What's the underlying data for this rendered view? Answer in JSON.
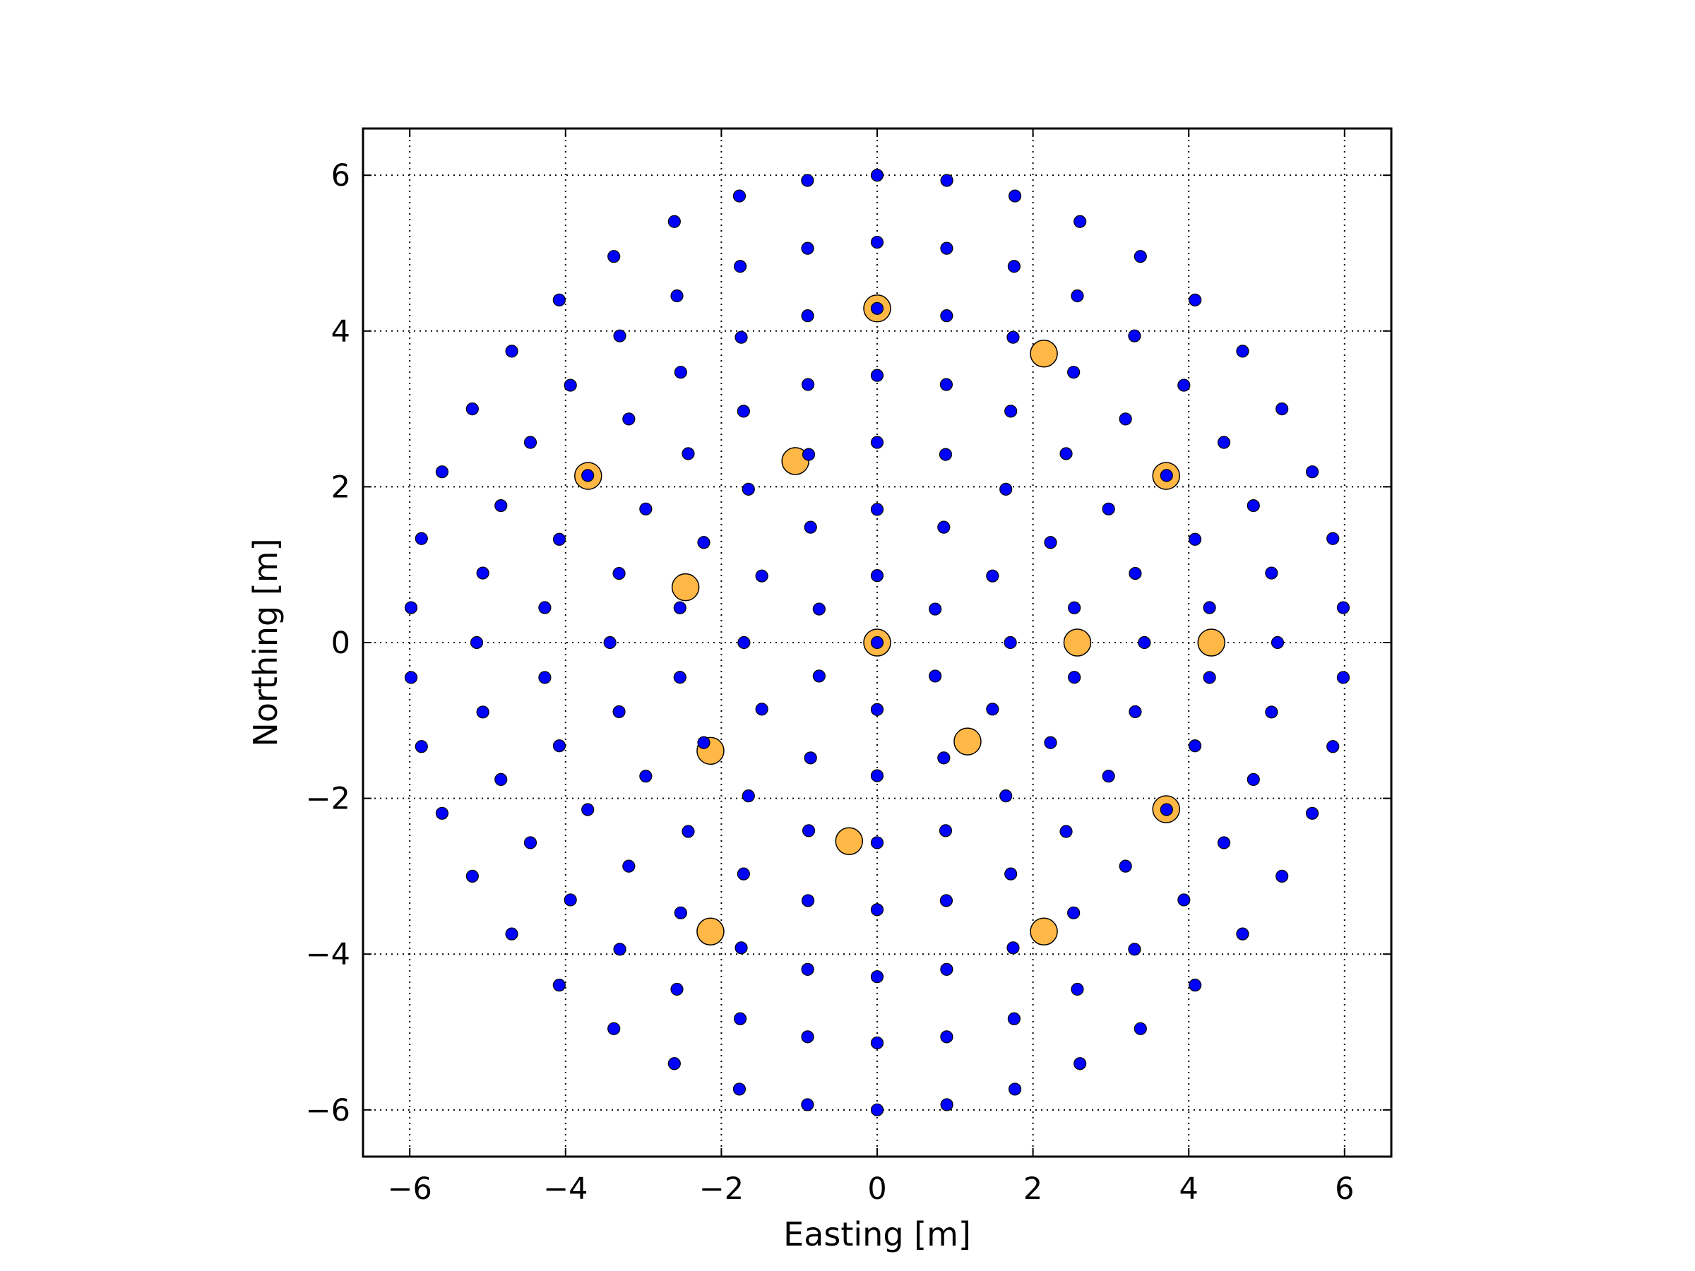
{
  "chart_data": {
    "type": "scatter",
    "title": "",
    "xlabel": "Easting [m]",
    "ylabel": "Northing [m]",
    "xlim": [
      -6.6,
      6.6
    ],
    "ylim": [
      -6.6,
      6.6
    ],
    "xticks": [
      -6,
      -4,
      -2,
      0,
      2,
      4,
      6
    ],
    "yticks": [
      -6,
      -4,
      -2,
      0,
      2,
      4,
      6
    ],
    "xtick_labels": [
      "−6",
      "−4",
      "−2",
      "0",
      "2",
      "4",
      "6"
    ],
    "ytick_labels": [
      "−6",
      "−4",
      "−2",
      "0",
      "2",
      "4",
      "6"
    ],
    "grid": true,
    "grid_style": "dotted",
    "series": [
      {
        "role": "all-elements",
        "color": "#0000ff",
        "edge_color": "#000000",
        "ring_radii_m": [
          0.86,
          1.71,
          2.57,
          3.43,
          4.29,
          5.14,
          6.0
        ],
        "ring_counts": [
          6,
          12,
          18,
          24,
          30,
          36,
          42
        ],
        "ring_offsets_deg": [
          90,
          90,
          90,
          90,
          90,
          90,
          90
        ]
      },
      {
        "role": "highlighted-elements",
        "color": "#ffb846",
        "edge_color": "#000000",
        "points": [
          [
            0,
            4.29
          ],
          [
            2.14,
            3.71
          ],
          [
            3.71,
            2.14
          ],
          [
            -3.71,
            2.14
          ],
          [
            -1.05,
            2.33
          ],
          [
            -2.46,
            0.71
          ],
          [
            0,
            0
          ],
          [
            2.57,
            0
          ],
          [
            4.29,
            0
          ],
          [
            1.16,
            -1.27
          ],
          [
            -2.14,
            -1.39
          ],
          [
            3.71,
            -2.14
          ],
          [
            -0.36,
            -2.55
          ],
          [
            -2.14,
            -3.71
          ],
          [
            2.14,
            -3.71
          ]
        ]
      }
    ]
  }
}
